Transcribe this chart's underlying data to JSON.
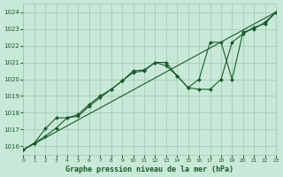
{
  "title": "Graphe pression niveau de la mer (hPa)",
  "background_color": "#c8e8d8",
  "grid_color": "#a0c8b0",
  "line_color": "#1a5c2a",
  "marker_color": "#1a5c2a",
  "xlim": [
    0,
    23
  ],
  "ylim": [
    1015.5,
    1024.5
  ],
  "yticks": [
    1016,
    1017,
    1018,
    1019,
    1020,
    1021,
    1022,
    1023,
    1024
  ],
  "xticks": [
    0,
    1,
    2,
    3,
    4,
    5,
    6,
    7,
    8,
    9,
    10,
    11,
    12,
    13,
    14,
    15,
    16,
    17,
    18,
    19,
    20,
    21,
    22,
    23
  ],
  "series1_x": [
    0,
    23
  ],
  "series1_y": [
    1015.8,
    1024.0
  ],
  "series2_x": [
    0,
    1,
    2,
    3,
    4,
    5,
    6,
    7,
    8,
    9,
    10,
    11,
    12,
    13,
    14,
    15,
    16,
    17,
    18,
    19,
    20,
    21,
    22,
    23
  ],
  "series2_y": [
    1015.8,
    1016.2,
    1016.6,
    1017.1,
    1017.7,
    1017.8,
    1018.4,
    1018.9,
    1019.4,
    1019.9,
    1020.4,
    1020.5,
    1021.0,
    1020.8,
    1020.2,
    1019.5,
    1019.4,
    1019.4,
    1020.0,
    1022.2,
    1022.7,
    1023.1,
    1023.3,
    1024.0
  ],
  "series3_x": [
    0,
    1,
    2,
    3,
    4,
    5,
    6,
    7,
    8,
    9,
    10,
    11,
    12,
    13,
    14,
    15,
    16,
    17,
    18,
    19,
    20,
    21,
    22,
    23
  ],
  "series3_y": [
    1015.8,
    1016.2,
    1017.05,
    1017.7,
    1017.7,
    1017.9,
    1018.5,
    1019.0,
    1019.4,
    1019.9,
    1020.5,
    1020.55,
    1021.0,
    1021.0,
    1020.2,
    1019.5,
    1020.0,
    1022.2,
    1022.2,
    1020.0,
    1022.8,
    1023.0,
    1023.4,
    1024.0
  ]
}
